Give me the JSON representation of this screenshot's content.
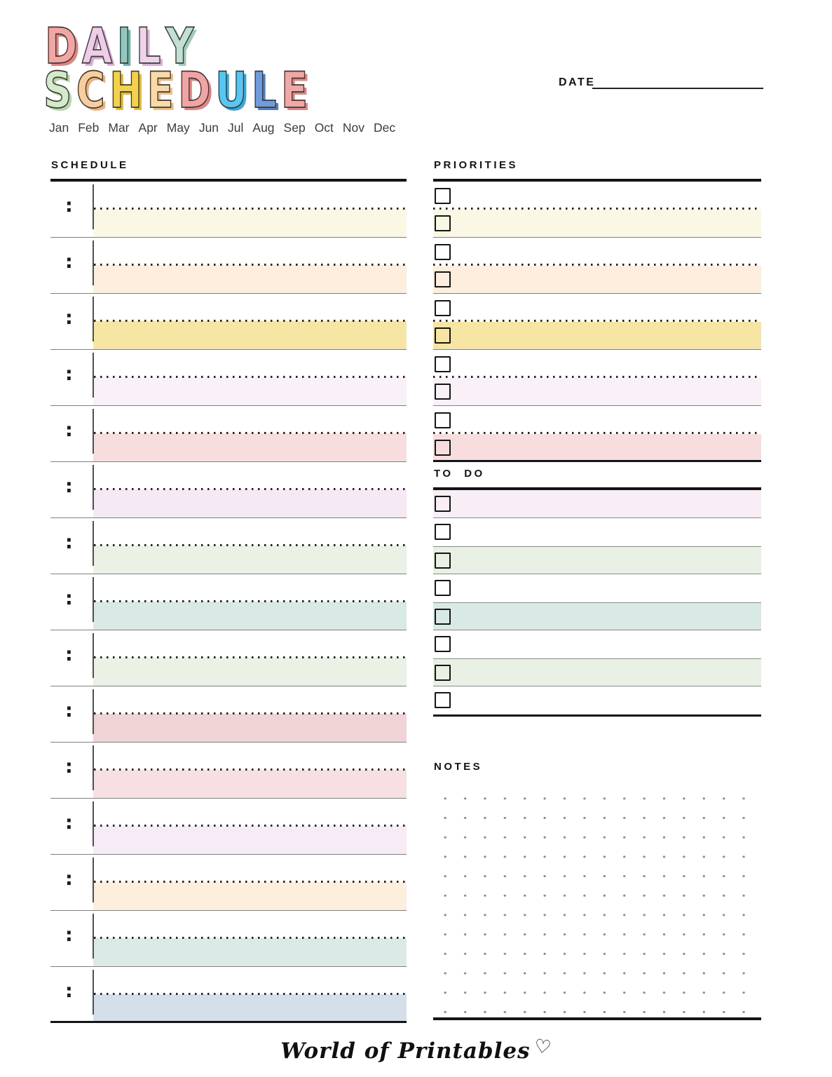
{
  "title": {
    "line1": [
      {
        "ch": "D",
        "fill": "#F2A6A3",
        "shadow": "#E4827F"
      },
      {
        "ch": "A",
        "fill": "#EDCDE8",
        "shadow": "#DCA9D2"
      },
      {
        "ch": "I",
        "fill": "#8FC9C0",
        "shadow": "#6FB5AB"
      },
      {
        "ch": "L",
        "fill": "#EED3EA",
        "shadow": "#DCB0D6"
      },
      {
        "ch": "Y",
        "fill": "#C2E0D3",
        "shadow": "#9CCDBA"
      }
    ],
    "line2": [
      {
        "ch": "S",
        "fill": "#D5E9CB",
        "shadow": "#B5D8A6"
      },
      {
        "ch": "C",
        "fill": "#F8CE9E",
        "shadow": "#F0B274"
      },
      {
        "ch": "H",
        "fill": "#F4D14D",
        "shadow": "#E6BB28"
      },
      {
        "ch": "E",
        "fill": "#FAD9A8",
        "shadow": "#F2BF7B"
      },
      {
        "ch": "D",
        "fill": "#F1A4A3",
        "shadow": "#E38280"
      },
      {
        "ch": "U",
        "fill": "#59C6F2",
        "shadow": "#2EACE3"
      },
      {
        "ch": "L",
        "fill": "#6F9CDA",
        "shadow": "#5180C2"
      },
      {
        "ch": "E",
        "fill": "#F1A8A7",
        "shadow": "#E38583"
      }
    ]
  },
  "months": [
    "Jan",
    "Feb",
    "Mar",
    "Apr",
    "May",
    "Jun",
    "Jul",
    "Aug",
    "Sep",
    "Oct",
    "Nov",
    "Dec"
  ],
  "date": {
    "label": "DATE"
  },
  "schedule": {
    "heading": "SCHEDULE",
    "time_separator": ":",
    "rows": [
      {
        "color": "#FAF7E4"
      },
      {
        "color": "#FDEEDD"
      },
      {
        "color": "#F7E5A3"
      },
      {
        "color": "#F9F0F8"
      },
      {
        "color": "#F8DDDE"
      },
      {
        "color": "#F4E9F4"
      },
      {
        "color": "#EAF1E5"
      },
      {
        "color": "#D8E9E6"
      },
      {
        "color": "#EAF1E5"
      },
      {
        "color": "#EFD3D5"
      },
      {
        "color": "#F8DFE1"
      },
      {
        "color": "#F6EBF6"
      },
      {
        "color": "#FDEEDD"
      },
      {
        "color": "#DBEAE6"
      },
      {
        "color": "#D5DFE9"
      }
    ]
  },
  "priorities": {
    "heading": "PRIORITIES",
    "bands": [
      {
        "color": "#FAF7E4"
      },
      {
        "color": "#FDEEDD"
      },
      {
        "color": "#F7E5A3"
      },
      {
        "color": "#F9F0F8"
      },
      {
        "color": "#F8DDDE"
      }
    ]
  },
  "todo": {
    "heading": "TO DO",
    "rows": [
      {
        "color": "#F9EEF5"
      },
      {
        "color": null
      },
      {
        "color": "#E9F1E4"
      },
      {
        "color": null
      },
      {
        "color": "#D8E9E6"
      },
      {
        "color": null
      },
      {
        "color": "#E9F1E4"
      },
      {
        "color": null
      }
    ]
  },
  "notes": {
    "heading": "NOTES",
    "grid": {
      "columns": 17,
      "rows": 12
    }
  },
  "footer": {
    "brand": "World of Printables",
    "heart": "♡"
  },
  "colors": {
    "thick_line": "#141414",
    "thin_line": "#808080",
    "dotted_line": "#242424",
    "note_dot": "#8d8d8d",
    "checkbox_border": "#151515"
  }
}
